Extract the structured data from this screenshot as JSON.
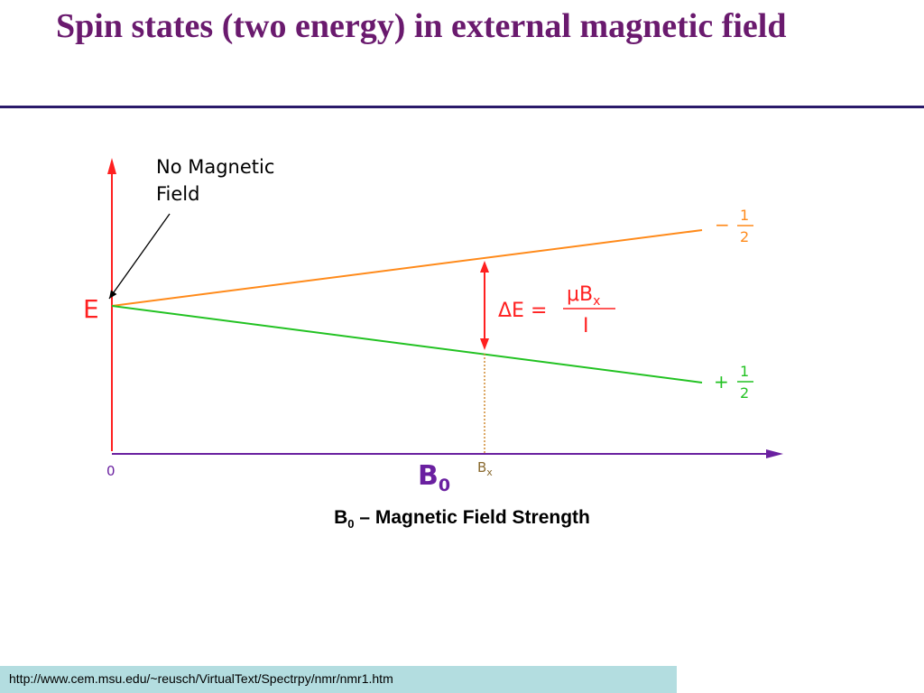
{
  "slide": {
    "title": "Spin states (two energy) in external magnetic field"
  },
  "diagram": {
    "annotation": [
      "No Magnetic",
      "Field"
    ],
    "y_axis_label": "E",
    "origin_label": "0",
    "x_axis_label_base": "B",
    "x_axis_label_sub": "0",
    "bx_label_base": "B",
    "bx_label_sub": "x",
    "upper_state_sign": "−",
    "lower_state_sign": "+",
    "fraction_numerator": "1",
    "fraction_denominator": "2",
    "delta_e_lhs": "ΔE =",
    "delta_e_numerator_base": "μB",
    "delta_e_numerator_sub": "x",
    "delta_e_denominator": "I"
  },
  "caption": {
    "base": "B",
    "sub": "0",
    "rest": " – Magnetic Field Strength"
  },
  "footer": {
    "url": "http://www.cem.msu.edu/~reusch/VirtualText/Spectrpy/nmr/nmr1.htm"
  },
  "colors": {
    "title": "#6a1a6e",
    "y_axis": "#ff2020",
    "x_axis": "#6a20a0",
    "upper_state_line": "#ff8a1a",
    "lower_state_line": "#22c222",
    "delta_arrow": "#ff2020",
    "footer_background": "#b3dde0"
  }
}
